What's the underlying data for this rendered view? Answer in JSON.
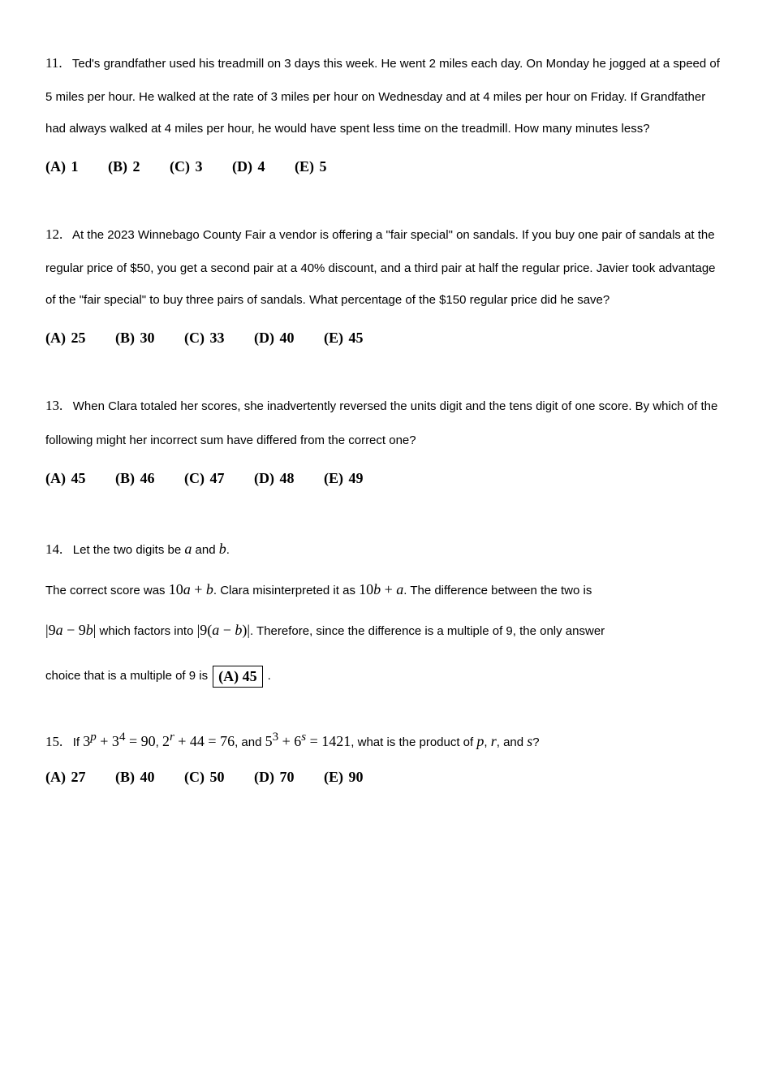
{
  "q11": {
    "num": "11.",
    "text": "Ted's grandfather used his treadmill on 3 days this week. He went 2 miles each day. On Monday he jogged at a speed of 5 miles per hour. He walked at the rate of 3 miles per hour on Wednesday and at 4 miles per hour on Friday. If Grandfather had always walked at 4 miles per hour, he would have spent less time on the treadmill. How many minutes less?",
    "choices": {
      "A": "(A) 1",
      "B": "(B) 2",
      "C": "(C) 3",
      "D": "(D) 4",
      "E": "(E) 5"
    }
  },
  "q12": {
    "num": "12.",
    "text": "At the 2023 Winnebago County Fair a vendor is offering a \"fair special\" on sandals. If you buy one pair of sandals at the regular price of $50, you get a second pair at a 40% discount, and a third pair at half the regular price. Javier took advantage of the \"fair special\" to buy three pairs of sandals. What percentage of the $150 regular price did he save?",
    "choices": {
      "A": "(A) 25",
      "B": "(B) 30",
      "C": "(C) 33",
      "D": "(D) 40",
      "E": "(E) 45"
    }
  },
  "q13": {
    "num": "13.",
    "text": "When Clara totaled her scores, she inadvertently reversed the units digit and the tens digit of one score. By which of the following might her incorrect sum have differed from the correct one?",
    "choices": {
      "A": "(A) 45",
      "B": "(B) 46",
      "C": "(C) 47",
      "D": "(D) 48",
      "E": "(E) 49"
    }
  },
  "q14": {
    "num": "14.",
    "lead_text": "Let the two digits be ",
    "var_a": "a",
    "lead_mid": " and ",
    "var_b": "b",
    "lead_end": ".",
    "line2_a": "The correct score was ",
    "expr1": "10a + b",
    "line2_b": ". Clara misinterpreted it as ",
    "expr2": "10b + a",
    "line2_c": ". The difference between the two is",
    "line3_expr1": "|9a − 9b|",
    "line3_a": " which factors into ",
    "line3_expr2": "|9(a − b)|",
    "line3_b": ". Therefore, since the difference is a multiple of 9, the only answer",
    "line4_a": "choice that is a multiple of 9 is ",
    "boxed": "(A) 45",
    "line4_end": "."
  },
  "q15": {
    "num": "15.",
    "t1": "If ",
    "e1": "3",
    "sup1": "p",
    "t2": " + 3",
    "sup2": "4",
    "t3": " = 90",
    "t4": ", ",
    "e2": "2",
    "sup3": "r",
    "t5": " + 44 = 76",
    "t6": ", and ",
    "e3": "5",
    "sup4": "3",
    "t7": " + 6",
    "sup5": "s",
    "t8": " = 1421",
    "t9": ", what is the product of ",
    "vp": "p",
    "t10": ", ",
    "vr": "r",
    "t11": ", and ",
    "vs": "s",
    "t12": "?",
    "choices": {
      "A": "(A) 27",
      "B": "(B) 40",
      "C": "(C) 50",
      "D": "(D) 70",
      "E": "(E) 90"
    }
  }
}
